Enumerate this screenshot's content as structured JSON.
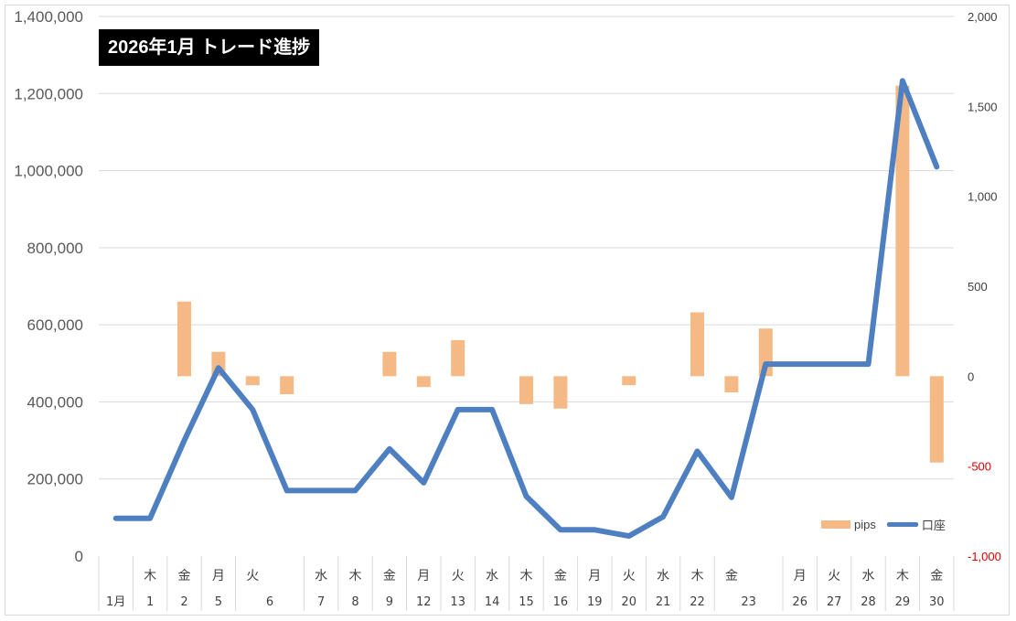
{
  "chart_data": {
    "type": "bar+line",
    "title": "2026年1月  トレード進捗",
    "y_left": {
      "range": [
        0,
        1400000
      ],
      "ticks": [
        "0",
        "200,000",
        "400,000",
        "600,000",
        "800,000",
        "1,000,000",
        "1,200,000",
        "1,400,000"
      ]
    },
    "y_right": {
      "range": [
        -1000,
        2000
      ],
      "ticks": [
        "-1,000",
        "-500",
        "0",
        "500",
        "1,000",
        "1,500",
        "2,000"
      ],
      "negative_color": "#e00000"
    },
    "categories": [
      {
        "weekday": "",
        "day": "1月"
      },
      {
        "weekday": "木",
        "day": "1"
      },
      {
        "weekday": "金",
        "day": "2"
      },
      {
        "weekday": "月",
        "day": "5"
      },
      {
        "weekday": "火",
        "day": "6"
      },
      {
        "weekday": "",
        "day": ""
      },
      {
        "weekday": "水",
        "day": "7"
      },
      {
        "weekday": "木",
        "day": "8"
      },
      {
        "weekday": "金",
        "day": "9"
      },
      {
        "weekday": "月",
        "day": "12"
      },
      {
        "weekday": "火",
        "day": "13"
      },
      {
        "weekday": "水",
        "day": "14"
      },
      {
        "weekday": "木",
        "day": "15"
      },
      {
        "weekday": "金",
        "day": "16"
      },
      {
        "weekday": "月",
        "day": "19"
      },
      {
        "weekday": "火",
        "day": "20"
      },
      {
        "weekday": "水",
        "day": "21"
      },
      {
        "weekday": "木",
        "day": "22"
      },
      {
        "weekday": "金",
        "day": "23"
      },
      {
        "weekday": "",
        "day": ""
      },
      {
        "weekday": "月",
        "day": "26"
      },
      {
        "weekday": "火",
        "day": "27"
      },
      {
        "weekday": "水",
        "day": "28"
      },
      {
        "weekday": "木",
        "day": "29"
      },
      {
        "weekday": "金",
        "day": "30"
      }
    ],
    "series": [
      {
        "name": "pips",
        "type": "bar",
        "axis": "right",
        "color": "#f4b984",
        "values": [
          null,
          null,
          415,
          135,
          -50,
          -100,
          null,
          null,
          135,
          -60,
          200,
          null,
          -155,
          -180,
          null,
          -50,
          null,
          355,
          -90,
          265,
          null,
          null,
          null,
          1615,
          -480
        ]
      },
      {
        "name": "口座",
        "type": "line",
        "axis": "left",
        "color": "#4e7fc0",
        "values": [
          98000,
          98000,
          300000,
          488000,
          380000,
          170000,
          170000,
          170000,
          278000,
          190000,
          380000,
          380000,
          155000,
          68000,
          68000,
          52000,
          102000,
          272000,
          152000,
          498000,
          498000,
          498000,
          498000,
          1233000,
          1010000
        ]
      }
    ],
    "legend": {
      "position": "bottom-right",
      "bar_label": "pips",
      "line_label": "口座"
    },
    "grid": true
  }
}
